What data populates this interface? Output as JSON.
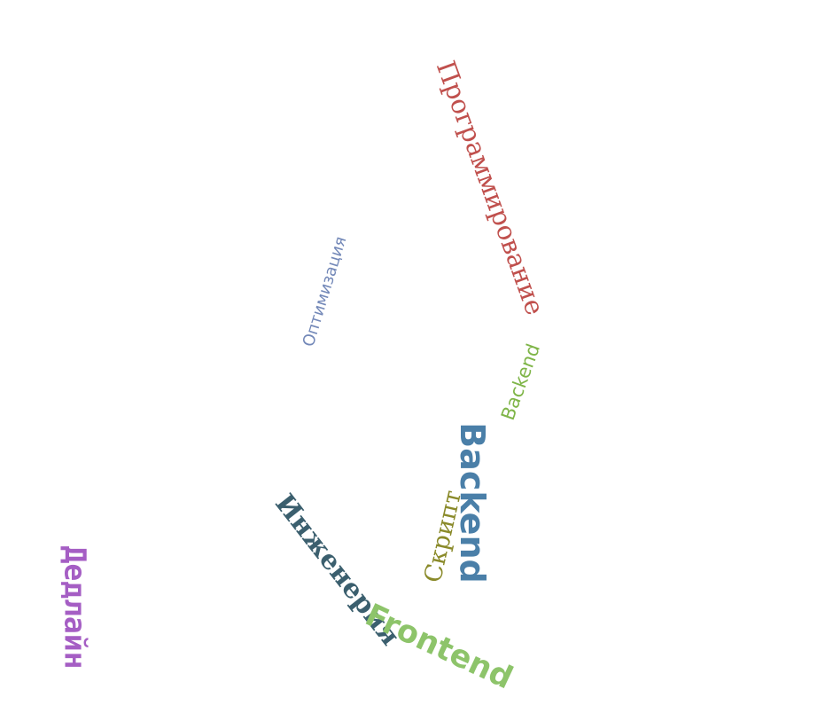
{
  "word_cloud": {
    "words": [
      {
        "text": "Программирование",
        "color": "#c0504d"
      },
      {
        "text": "Оптимизация",
        "color": "#7388b8"
      },
      {
        "text": "Backend",
        "color": "#7fb548"
      },
      {
        "text": "Backend",
        "color": "#4a7fa8"
      },
      {
        "text": "Скрипт",
        "color": "#8a8a2a"
      },
      {
        "text": "Инженерия",
        "color": "#3b5f6e"
      },
      {
        "text": "Frontend",
        "color": "#8dc46a"
      },
      {
        "text": "Дедлайн",
        "color": "#a55ec4"
      }
    ]
  }
}
